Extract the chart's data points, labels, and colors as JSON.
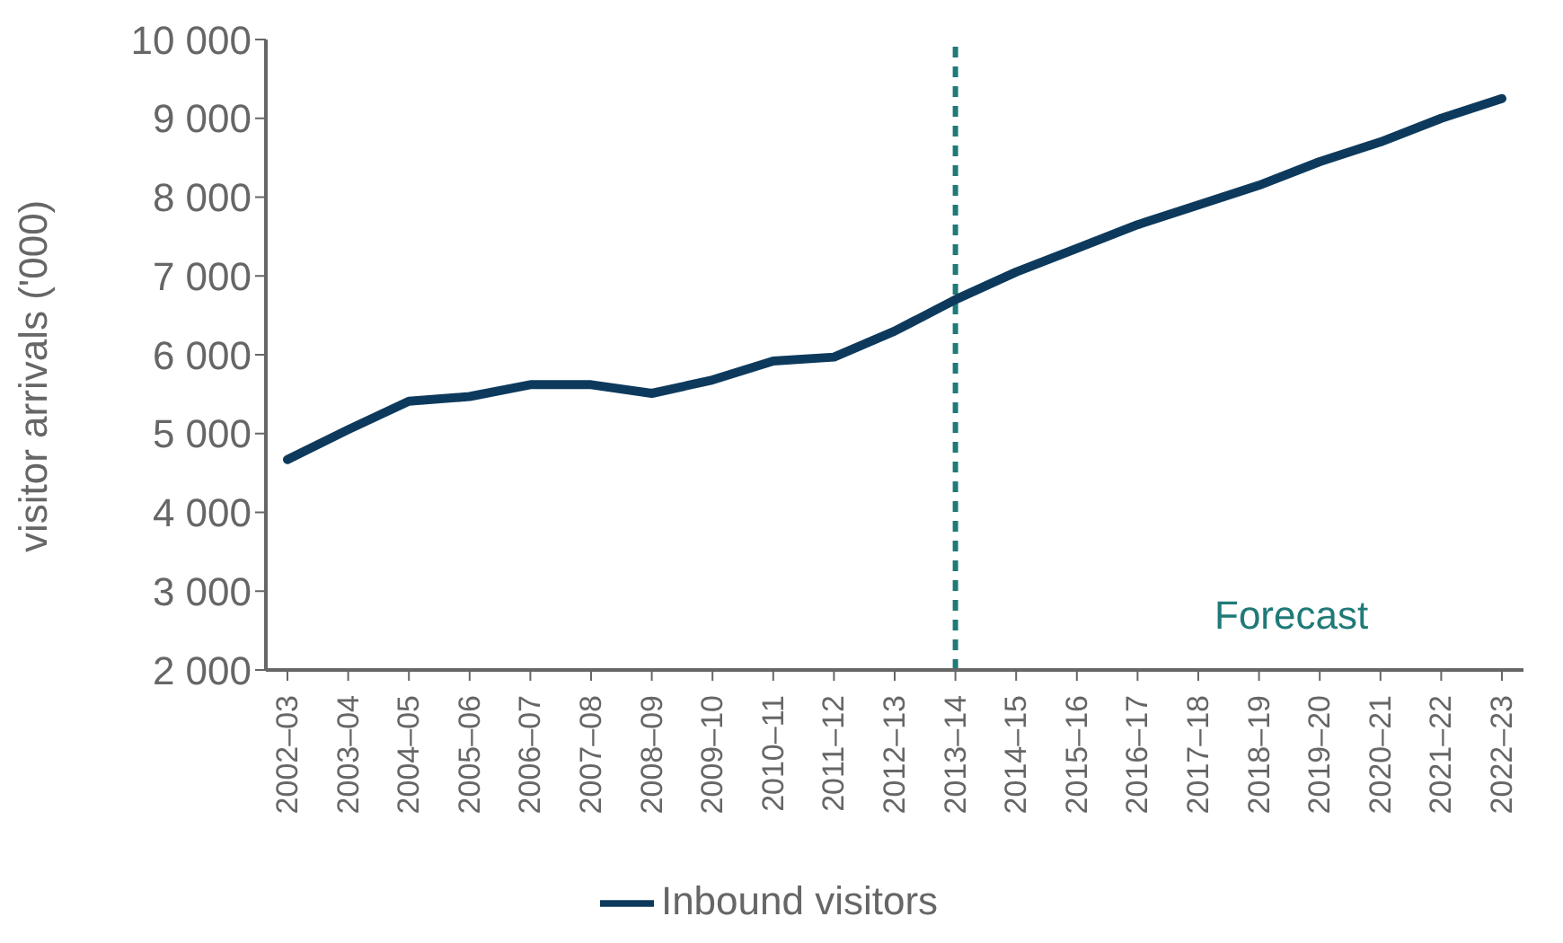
{
  "chart_data": {
    "type": "line",
    "ylabel": "visitor arrivals ('000)",
    "categories": [
      "2002–03",
      "2003–04",
      "2004–05",
      "2005–06",
      "2006–07",
      "2007–08",
      "2008–09",
      "2009–10",
      "2010–11",
      "2011–12",
      "2012–13",
      "2013–14",
      "2014–15",
      "2015–16",
      "2016–17",
      "2017–18",
      "2018–19",
      "2019–20",
      "2020–21",
      "2021–22",
      "2022–23"
    ],
    "series": [
      {
        "name": "Inbound visitors",
        "color": "#0d3a5c",
        "values": [
          4670,
          5050,
          5410,
          5470,
          5620,
          5620,
          5510,
          5680,
          5920,
          5970,
          6300,
          6700,
          7050,
          7350,
          7650,
          7900,
          8150,
          8450,
          8700,
          9000,
          9250
        ]
      }
    ],
    "ylim": [
      2000,
      10000
    ],
    "yticks": [
      {
        "value": 2000,
        "label": "2 000"
      },
      {
        "value": 3000,
        "label": "3 000"
      },
      {
        "value": 4000,
        "label": "4 000"
      },
      {
        "value": 5000,
        "label": "5 000"
      },
      {
        "value": 6000,
        "label": "6 000"
      },
      {
        "value": 7000,
        "label": "7 000"
      },
      {
        "value": 8000,
        "label": "8 000"
      },
      {
        "value": 9000,
        "label": "9 000"
      },
      {
        "value": 10000,
        "label": "10 000"
      }
    ],
    "ref_lines": [
      {
        "axis": "x",
        "value": "2013–14",
        "color": "#1f7a78",
        "line_style": "dashed"
      }
    ],
    "annotations": [
      "Forecast"
    ],
    "legend": "bottom",
    "grid": false,
    "marker": "none",
    "line_style": "solid"
  }
}
